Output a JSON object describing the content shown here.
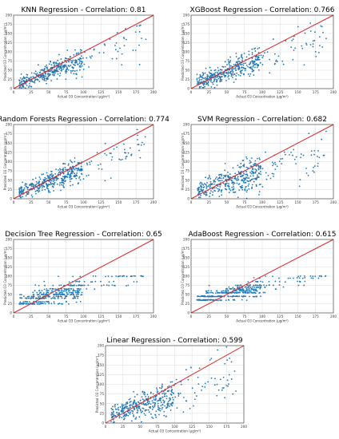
{
  "figure": {
    "panels": [
      {
        "title": "KNN Regression - Correlation: 0.81"
      },
      {
        "title": "XGBoost Regression - Correlation: 0.766"
      },
      {
        "title": "Random Forests Regression - Correlation: 0.774"
      },
      {
        "title": "SVM Regression - Correlation: 0.682"
      },
      {
        "title": "Decision Tree Regression - Correlation: 0.65"
      },
      {
        "title": "AdaBoost Regression - Correlation: 0.615"
      },
      {
        "title": "Linear Regression - Correlation: 0.599"
      }
    ]
  },
  "colors": {
    "points": "#1f77b4",
    "line": "#d62728",
    "grid": "#d9d9d9",
    "axis": "#333333"
  },
  "chart_data": [
    {
      "type": "scatter",
      "title": "KNN Regression - Correlation: 0.81",
      "xlabel": "Actual O3 Concentration (µg/m³)",
      "ylabel": "Predicted O3 Concentration (µg/m³)",
      "xlim": [
        0,
        200
      ],
      "ylim": [
        0,
        200
      ],
      "xticks": [
        0,
        25,
        50,
        75,
        100,
        125,
        150,
        175,
        200
      ],
      "yticks": [
        0,
        25,
        50,
        75,
        100,
        125,
        150,
        175,
        200
      ],
      "grid": true,
      "reference_line": "y = x",
      "trend": {
        "slope": 0.72,
        "intercept": 8,
        "spread": 12
      }
    },
    {
      "type": "scatter",
      "title": "XGBoost Regression - Correlation: 0.766",
      "xlabel": "Actual O3 Concentration (µg/m³)",
      "ylabel": "Predicted O3 Concentration (µg/m³)",
      "xlim": [
        0,
        200
      ],
      "ylim": [
        0,
        200
      ],
      "xticks": [
        0,
        25,
        50,
        75,
        100,
        125,
        150,
        175,
        200
      ],
      "yticks": [
        0,
        25,
        50,
        75,
        100,
        125,
        150,
        175,
        200
      ],
      "grid": true,
      "reference_line": "y = x",
      "trend": {
        "slope": 0.72,
        "intercept": 10,
        "spread": 14
      }
    },
    {
      "type": "scatter",
      "title": "Random Forests Regression - Correlation: 0.774",
      "xlabel": "Actual O3 Concentration (µg/m³)",
      "ylabel": "Predicted O3 Concentration (µg/m³)",
      "xlim": [
        0,
        200
      ],
      "ylim": [
        0,
        200
      ],
      "xticks": [
        0,
        25,
        50,
        75,
        100,
        125,
        150,
        175,
        200
      ],
      "yticks": [
        0,
        25,
        50,
        75,
        100,
        125,
        150,
        175,
        200
      ],
      "grid": true,
      "reference_line": "y = x",
      "trend": {
        "slope": 0.68,
        "intercept": 12,
        "spread": 13
      }
    },
    {
      "type": "scatter",
      "title": "SVM Regression - Correlation: 0.682",
      "xlabel": "Actual O3 Concentration (µg/m³)",
      "ylabel": "Predicted O3 Concentration (µg/m³)",
      "xlim": [
        0,
        200
      ],
      "ylim": [
        0,
        200
      ],
      "xticks": [
        0,
        25,
        50,
        75,
        100,
        125,
        150,
        175,
        200
      ],
      "yticks": [
        0,
        25,
        50,
        75,
        100,
        125,
        150,
        175,
        200
      ],
      "grid": true,
      "reference_line": "y = x",
      "trend": {
        "slope": 0.6,
        "intercept": 14,
        "spread": 16
      }
    },
    {
      "type": "scatter",
      "title": "Decision Tree Regression - Correlation: 0.65",
      "xlabel": "Actual O3 Concentration (µg/m³)",
      "ylabel": "Predicted O3 Concentration (µg/m³)",
      "xlim": [
        0,
        200
      ],
      "ylim": [
        0,
        200
      ],
      "xticks": [
        0,
        25,
        50,
        75,
        100,
        125,
        150,
        175,
        200
      ],
      "yticks": [
        0,
        25,
        50,
        75,
        100,
        125,
        150,
        175,
        200
      ],
      "grid": true,
      "reference_line": "y = x",
      "prediction_levels": [
        25,
        30,
        40,
        45,
        50,
        55,
        60,
        65,
        75,
        85,
        100
      ],
      "trend": {
        "slope": 0.5,
        "intercept": 20,
        "spread": 14
      }
    },
    {
      "type": "scatter",
      "title": "AdaBoost Regression - Correlation: 0.615",
      "xlabel": "Actual O3 Concentration (µg/m³)",
      "ylabel": "Predicted O3 Concentration (µg/m³)",
      "xlim": [
        0,
        200
      ],
      "ylim": [
        0,
        200
      ],
      "xticks": [
        0,
        25,
        50,
        75,
        100,
        125,
        150,
        175,
        200
      ],
      "yticks": [
        0,
        25,
        50,
        75,
        100,
        125,
        150,
        175,
        200
      ],
      "grid": true,
      "reference_line": "y = x",
      "prediction_levels": [
        35,
        45,
        55,
        60,
        65,
        70,
        75,
        85,
        95,
        100
      ],
      "trend": {
        "slope": 0.4,
        "intercept": 32,
        "spread": 10
      }
    },
    {
      "type": "scatter",
      "title": "Linear Regression - Correlation: 0.599",
      "xlabel": "Actual O3 Concentration (µg/m³)",
      "ylabel": "Predicted O3 Concentration (µg/m³)",
      "xlim": [
        0,
        200
      ],
      "ylim": [
        0,
        200
      ],
      "xticks": [
        0,
        25,
        50,
        75,
        100,
        125,
        150,
        175,
        200
      ],
      "yticks": [
        0,
        25,
        50,
        75,
        100,
        125,
        150,
        175,
        200
      ],
      "grid": true,
      "reference_line": "y = x",
      "trend": {
        "slope": 0.55,
        "intercept": 18,
        "spread": 16
      }
    }
  ]
}
